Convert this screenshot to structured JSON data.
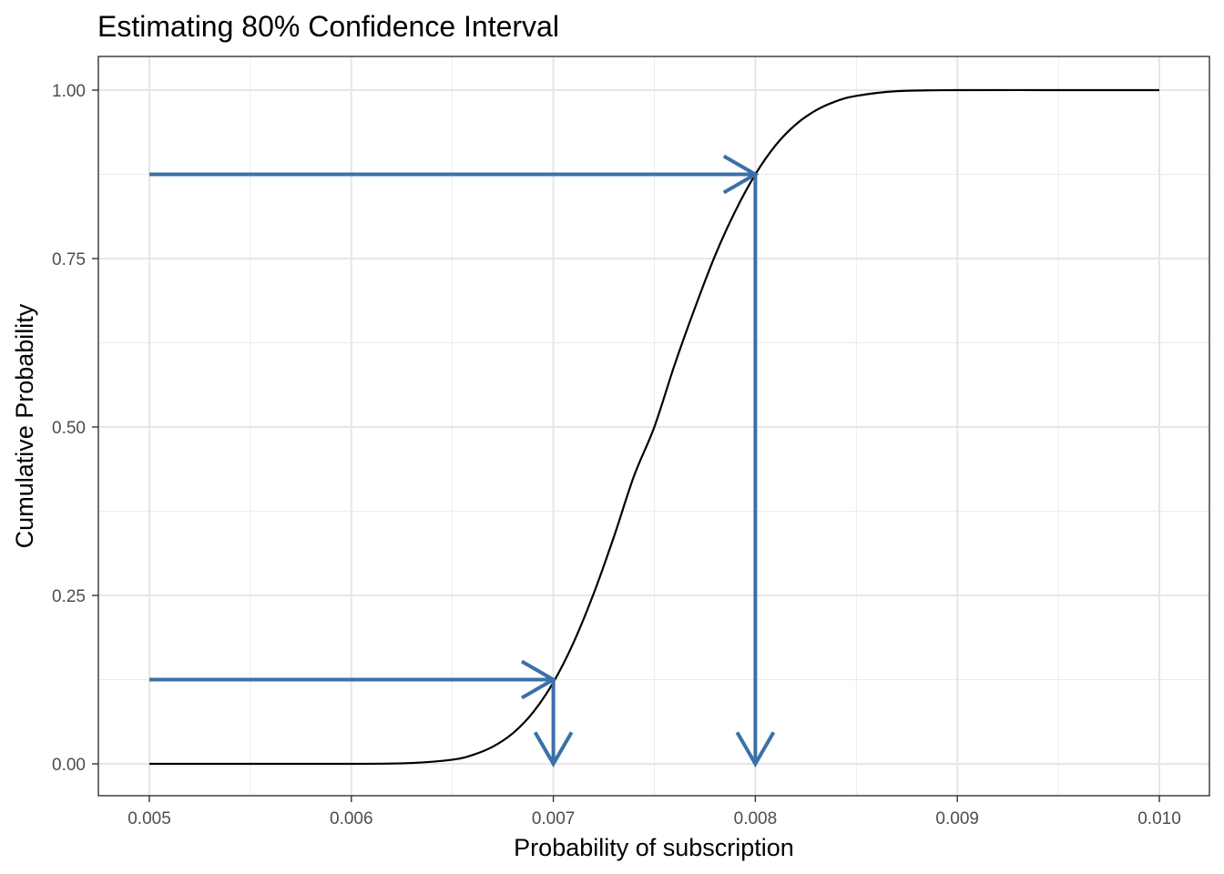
{
  "chart_data": {
    "type": "line",
    "title": "Estimating 80% Confidence Interval",
    "xlabel": "Probability of subscription",
    "ylabel": "Cumulative Probability",
    "xlim": [
      0.005,
      0.01
    ],
    "ylim": [
      0,
      1
    ],
    "x_ticks": [
      0.005,
      0.006,
      0.007,
      0.008,
      0.009,
      0.01
    ],
    "x_tick_labels": [
      "0.005",
      "0.006",
      "0.007",
      "0.008",
      "0.009",
      "0.010"
    ],
    "y_ticks": [
      0,
      0.25,
      0.5,
      0.75,
      1
    ],
    "y_tick_labels": [
      "0.00",
      "0.25",
      "0.50",
      "0.75",
      "1.00"
    ],
    "grid": true,
    "series": [
      {
        "x": [
          0.005,
          0.0055,
          0.006,
          0.0063,
          0.0065,
          0.0066,
          0.0067,
          0.0068,
          0.0069,
          0.007,
          0.0071,
          0.0072,
          0.0073,
          0.0074,
          0.0075,
          0.0076,
          0.0077,
          0.0078,
          0.0079,
          0.008,
          0.0081,
          0.0082,
          0.0083,
          0.0084,
          0.0085,
          0.0087,
          0.009,
          0.0095,
          0.01
        ],
        "y": [
          0,
          0,
          0,
          0.0013,
          0.0062,
          0.0131,
          0.0254,
          0.0455,
          0.0766,
          0.121,
          0.18,
          0.253,
          0.3372,
          0.4278,
          0.5,
          0.592,
          0.676,
          0.754,
          0.82,
          0.875,
          0.918,
          0.949,
          0.97,
          0.9835,
          0.9915,
          0.9985,
          1,
          1,
          1
        ],
        "color": "#000000"
      }
    ],
    "annotations": [
      {
        "type": "arrow",
        "from": [
          0.005,
          0.125
        ],
        "to": [
          0.007,
          0.125
        ],
        "color": "#3b70a8"
      },
      {
        "type": "arrow",
        "from": [
          0.007,
          0.125
        ],
        "to": [
          0.007,
          0
        ],
        "color": "#3b70a8"
      },
      {
        "type": "arrow",
        "from": [
          0.005,
          0.875
        ],
        "to": [
          0.008,
          0.875
        ],
        "color": "#3b70a8"
      },
      {
        "type": "arrow",
        "from": [
          0.008,
          0.875
        ],
        "to": [
          0.008,
          0
        ],
        "color": "#3b70a8"
      }
    ]
  }
}
